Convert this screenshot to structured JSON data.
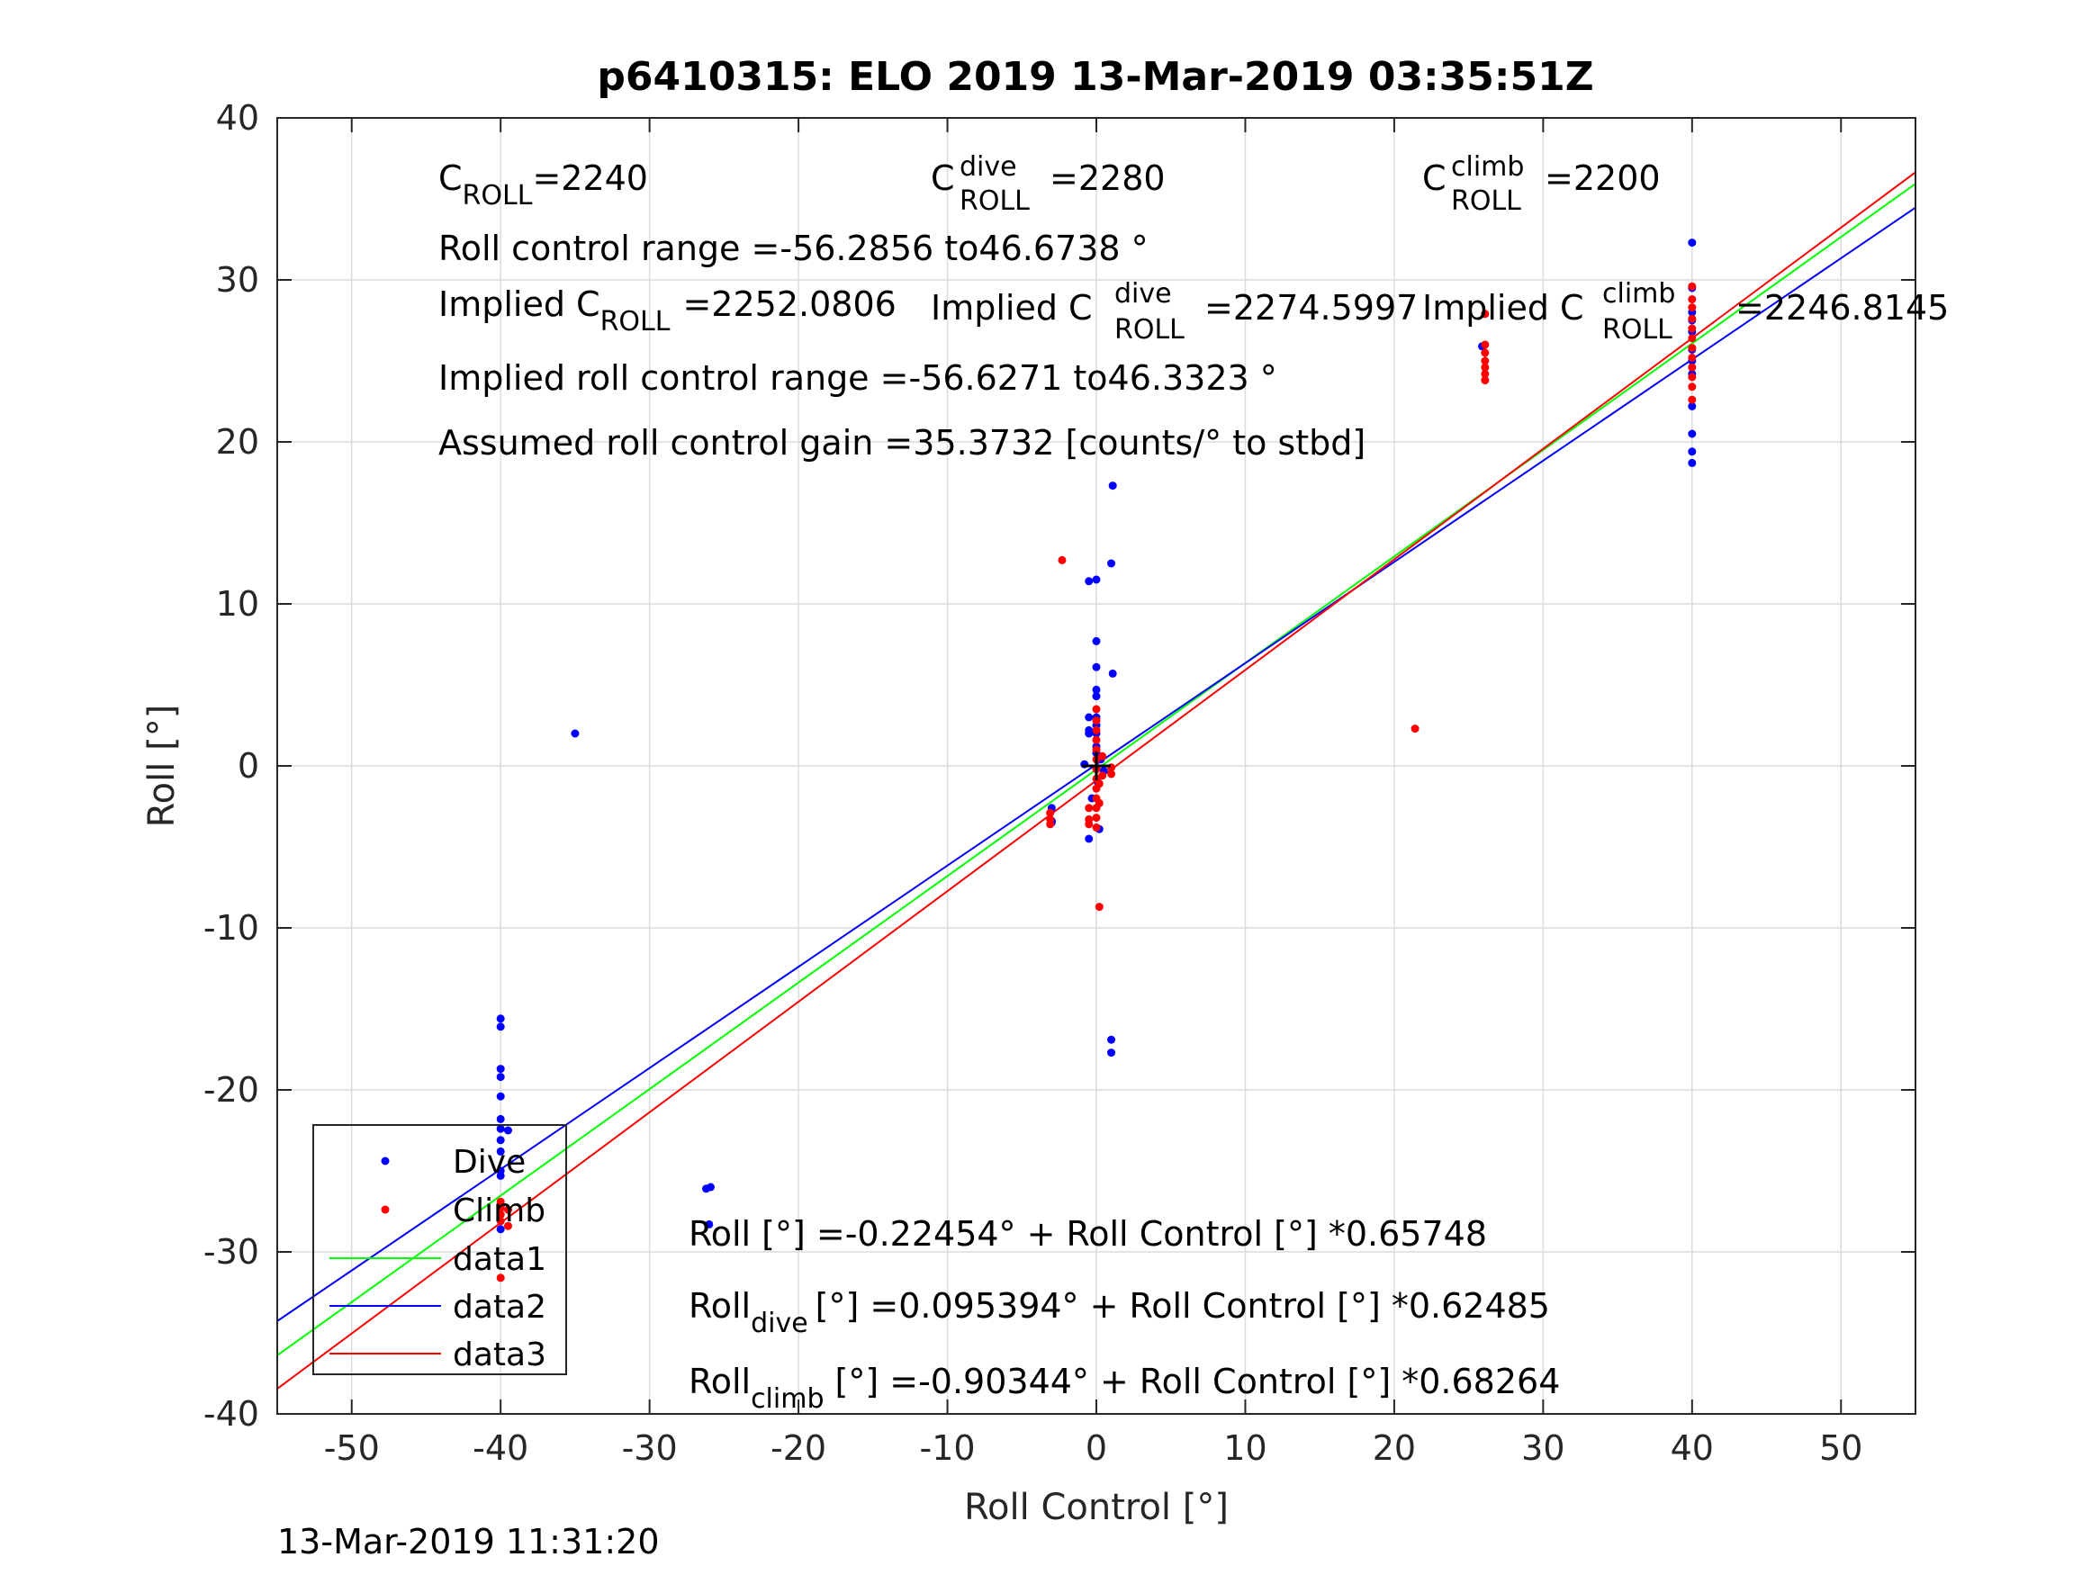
{
  "title": "p6410315: ELO 2019 13-Mar-2019 03:35:51Z",
  "timestamp": "13-Mar-2019 11:31:20",
  "annotations": {
    "c_roll": "=2240",
    "c_roll_dive": "=2280",
    "c_roll_climb": "=2200",
    "roll_control_range": "Roll control range =-56.2856 to46.6738 °",
    "implied_c_roll": "=2252.0806",
    "implied_c_roll_dive": "=2274.5997",
    "implied_c_roll_climb": "=2246.8145",
    "implied_range": "Implied roll control range =-56.6271 to46.3323 °",
    "gain": "Assumed roll control gain =35.3732 [counts/° to stbd]",
    "eq_all": "Roll [°] =-0.22454° + Roll Control [°] *0.65748",
    "eq_dive": "[°] =0.095394° + Roll Control [°] *0.62485",
    "eq_climb": "[°] =-0.90344° + Roll Control [°] *0.68264",
    "sym_C": "C",
    "sym_implied": "Implied C",
    "sym_roll": "Roll",
    "sub_roll": "ROLL",
    "sup_dive": "dive",
    "sup_climb": "climb"
  },
  "colors": {
    "dive": "#0000ff",
    "climb": "#ff0000",
    "data1": "#00ff00",
    "data2": "#0000ff",
    "data3": "#ff0000",
    "grid": "#dcdcdc"
  },
  "chart_data": {
    "type": "scatter",
    "xlabel": "Roll Control [°]",
    "ylabel": "Roll [°]",
    "xlim": [
      -55,
      55
    ],
    "ylim": [
      -40,
      40
    ],
    "xticks": [
      -50,
      -40,
      -30,
      -20,
      -10,
      0,
      10,
      20,
      30,
      40,
      50
    ],
    "yticks": [
      -40,
      -30,
      -20,
      -10,
      0,
      10,
      20,
      30,
      40
    ],
    "grid": true,
    "legend_position": "bottom-left",
    "series": [
      {
        "name": "Dive",
        "kind": "points",
        "color": "#0000ff",
        "points": [
          [
            -40,
            -15.6
          ],
          [
            -40,
            -16.1
          ],
          [
            -40,
            -18.7
          ],
          [
            -40,
            -19.2
          ],
          [
            -40,
            -20.4
          ],
          [
            -40,
            -21.8
          ],
          [
            -40,
            -22.4
          ],
          [
            -40,
            -23.1
          ],
          [
            -40,
            -23.8
          ],
          [
            -40,
            -25.0
          ],
          [
            -40,
            -25.3
          ],
          [
            -40,
            -27.2
          ],
          [
            -40,
            -28.6
          ],
          [
            -39.5,
            -22.5
          ],
          [
            -35,
            2.0
          ],
          [
            -26.2,
            -26.1
          ],
          [
            -25.9,
            -26.0
          ],
          [
            -26.0,
            -28.3
          ],
          [
            -3,
            -2.6
          ],
          [
            -3,
            -3.5
          ],
          [
            -3,
            -3.4
          ],
          [
            -0.5,
            11.4
          ],
          [
            0,
            11.5
          ],
          [
            1.1,
            17.3
          ],
          [
            1.0,
            12.5
          ],
          [
            1.1,
            5.7
          ],
          [
            0,
            7.7
          ],
          [
            0,
            6.1
          ],
          [
            0,
            4.7
          ],
          [
            0,
            4.3
          ],
          [
            0,
            3.0
          ],
          [
            0,
            2.5
          ],
          [
            0,
            2.0
          ],
          [
            0,
            1.2
          ],
          [
            0,
            0.8
          ],
          [
            -0.5,
            3.0
          ],
          [
            -0.5,
            2.2
          ],
          [
            -0.5,
            2.0
          ],
          [
            -0.5,
            -4.5
          ],
          [
            0.2,
            -3.9
          ],
          [
            -0.3,
            -2.0
          ],
          [
            0.1,
            -1.0
          ],
          [
            0.3,
            0.4
          ],
          [
            -0.8,
            0.1
          ],
          [
            0.5,
            -0.3
          ],
          [
            1.0,
            -16.9
          ],
          [
            1.0,
            -17.7
          ],
          [
            25.9,
            25.9
          ],
          [
            40,
            32.3
          ],
          [
            40,
            29.5
          ],
          [
            40,
            28.0
          ],
          [
            40,
            27.5
          ],
          [
            40,
            26.8
          ],
          [
            40,
            25.7
          ],
          [
            40,
            25.0
          ],
          [
            40,
            24.2
          ],
          [
            40,
            22.2
          ],
          [
            40,
            20.5
          ],
          [
            40,
            19.4
          ],
          [
            40,
            18.7
          ]
        ]
      },
      {
        "name": "Climb",
        "kind": "points",
        "color": "#ff0000",
        "points": [
          [
            -40,
            -26.9
          ],
          [
            -40,
            -27.3
          ],
          [
            -40,
            -27.7
          ],
          [
            -40,
            -28.1
          ],
          [
            -39.5,
            -27.4
          ],
          [
            -39.5,
            -28.4
          ],
          [
            -40,
            -31.6
          ],
          [
            -2.3,
            12.7
          ],
          [
            -3.1,
            -2.9
          ],
          [
            -3.1,
            -3.3
          ],
          [
            -3.1,
            -3.6
          ],
          [
            -0.5,
            -2.6
          ],
          [
            -0.5,
            -3.3
          ],
          [
            -0.5,
            -3.6
          ],
          [
            0,
            3.5
          ],
          [
            0,
            2.8
          ],
          [
            0,
            2.2
          ],
          [
            0,
            1.6
          ],
          [
            0,
            1.0
          ],
          [
            0,
            0.4
          ],
          [
            0,
            -0.2
          ],
          [
            0,
            -0.8
          ],
          [
            0,
            -1.4
          ],
          [
            0,
            -2.0
          ],
          [
            0,
            -2.6
          ],
          [
            0,
            -3.2
          ],
          [
            0,
            -3.8
          ],
          [
            0.2,
            -1.1
          ],
          [
            0.2,
            -2.3
          ],
          [
            0.4,
            0.6
          ],
          [
            0.4,
            -0.6
          ],
          [
            0.2,
            -8.7
          ],
          [
            1.0,
            -0.1
          ],
          [
            1.0,
            -0.5
          ],
          [
            21.4,
            2.3
          ],
          [
            26.1,
            27.9
          ],
          [
            26.1,
            26.0
          ],
          [
            26.1,
            25.5
          ],
          [
            26.1,
            25.0
          ],
          [
            26.1,
            24.6
          ],
          [
            26.1,
            24.2
          ],
          [
            26.1,
            23.8
          ],
          [
            40,
            29.6
          ],
          [
            40,
            28.8
          ],
          [
            40,
            28.3
          ],
          [
            40,
            27.6
          ],
          [
            40,
            27.0
          ],
          [
            40,
            26.4
          ],
          [
            40,
            25.8
          ],
          [
            40,
            25.2
          ],
          [
            40,
            24.6
          ],
          [
            40,
            24.0
          ],
          [
            40,
            23.4
          ],
          [
            40,
            22.6
          ]
        ]
      },
      {
        "name": "data1",
        "kind": "line",
        "color": "#00ff00",
        "intercept": -0.22454,
        "slope": 0.65748
      },
      {
        "name": "data2",
        "kind": "line",
        "color": "#0000ff",
        "intercept": 0.095394,
        "slope": 0.62485
      },
      {
        "name": "data3",
        "kind": "line",
        "color": "#ff0000",
        "intercept": -0.90344,
        "slope": 0.68264
      }
    ],
    "origin_marker": [
      0,
      0
    ]
  }
}
